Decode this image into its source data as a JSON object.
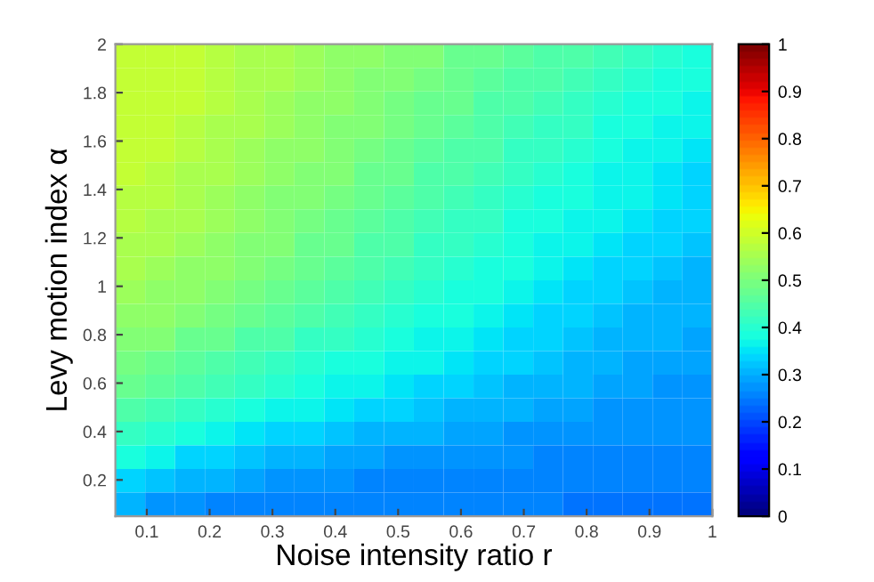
{
  "chart_data": {
    "type": "heatmap",
    "xlabel": "Noise intensity ratio r",
    "ylabel": "Levy motion index α",
    "xlim": [
      0.05,
      1
    ],
    "xticks": [
      0.1,
      0.2,
      0.3,
      0.4,
      0.5,
      0.6,
      0.7,
      0.8,
      0.9,
      1
    ],
    "ylim": [
      0.05,
      2
    ],
    "yticks": [
      0.2,
      0.4,
      0.6,
      0.8,
      1,
      1.2,
      1.4,
      1.6,
      1.8,
      2
    ],
    "clim": [
      0,
      1
    ],
    "cticks": [
      0,
      0.1,
      0.2,
      0.3,
      0.4,
      0.5,
      0.6,
      0.7,
      0.8,
      0.9,
      1
    ],
    "cells": [
      [
        0.59,
        0.59,
        0.58,
        0.57,
        0.56,
        0.55,
        0.54,
        0.53,
        0.52,
        0.51,
        0.5,
        0.48,
        0.47,
        0.46,
        0.45,
        0.44,
        0.43,
        0.42,
        0.4,
        0.39
      ],
      [
        0.59,
        0.59,
        0.58,
        0.57,
        0.56,
        0.55,
        0.54,
        0.53,
        0.51,
        0.5,
        0.49,
        0.48,
        0.46,
        0.45,
        0.44,
        0.43,
        0.42,
        0.4,
        0.39,
        0.38
      ],
      [
        0.59,
        0.58,
        0.58,
        0.57,
        0.56,
        0.54,
        0.53,
        0.52,
        0.51,
        0.49,
        0.48,
        0.47,
        0.45,
        0.44,
        0.43,
        0.42,
        0.4,
        0.39,
        0.38,
        0.37
      ],
      [
        0.59,
        0.58,
        0.57,
        0.56,
        0.55,
        0.54,
        0.53,
        0.51,
        0.5,
        0.49,
        0.47,
        0.46,
        0.45,
        0.43,
        0.42,
        0.41,
        0.39,
        0.38,
        0.37,
        0.36
      ],
      [
        0.58,
        0.58,
        0.57,
        0.56,
        0.54,
        0.53,
        0.52,
        0.5,
        0.49,
        0.48,
        0.46,
        0.45,
        0.44,
        0.42,
        0.41,
        0.4,
        0.38,
        0.37,
        0.36,
        0.35
      ],
      [
        0.58,
        0.57,
        0.56,
        0.55,
        0.54,
        0.52,
        0.51,
        0.5,
        0.48,
        0.47,
        0.45,
        0.44,
        0.43,
        0.41,
        0.4,
        0.39,
        0.37,
        0.36,
        0.35,
        0.34
      ],
      [
        0.57,
        0.57,
        0.56,
        0.54,
        0.53,
        0.51,
        0.5,
        0.49,
        0.47,
        0.46,
        0.44,
        0.43,
        0.42,
        0.4,
        0.39,
        0.38,
        0.37,
        0.36,
        0.35,
        0.34
      ],
      [
        0.57,
        0.56,
        0.55,
        0.54,
        0.52,
        0.51,
        0.49,
        0.48,
        0.46,
        0.45,
        0.43,
        0.42,
        0.41,
        0.39,
        0.38,
        0.37,
        0.36,
        0.35,
        0.34,
        0.33
      ],
      [
        0.56,
        0.55,
        0.54,
        0.53,
        0.51,
        0.5,
        0.48,
        0.47,
        0.45,
        0.44,
        0.42,
        0.41,
        0.4,
        0.38,
        0.37,
        0.36,
        0.35,
        0.34,
        0.33,
        0.32
      ],
      [
        0.55,
        0.54,
        0.53,
        0.52,
        0.5,
        0.49,
        0.47,
        0.46,
        0.44,
        0.43,
        0.41,
        0.4,
        0.39,
        0.38,
        0.36,
        0.35,
        0.34,
        0.33,
        0.32,
        0.31
      ],
      [
        0.54,
        0.53,
        0.52,
        0.5,
        0.49,
        0.47,
        0.46,
        0.44,
        0.43,
        0.42,
        0.4,
        0.39,
        0.38,
        0.37,
        0.35,
        0.34,
        0.33,
        0.32,
        0.31,
        0.31
      ],
      [
        0.53,
        0.52,
        0.5,
        0.49,
        0.47,
        0.46,
        0.44,
        0.43,
        0.42,
        0.4,
        0.39,
        0.38,
        0.37,
        0.35,
        0.34,
        0.33,
        0.32,
        0.31,
        0.31,
        0.3
      ],
      [
        0.51,
        0.5,
        0.48,
        0.47,
        0.45,
        0.44,
        0.42,
        0.41,
        0.4,
        0.39,
        0.37,
        0.36,
        0.35,
        0.34,
        0.33,
        0.32,
        0.31,
        0.3,
        0.3,
        0.29
      ],
      [
        0.49,
        0.48,
        0.46,
        0.45,
        0.43,
        0.42,
        0.4,
        0.39,
        0.38,
        0.37,
        0.36,
        0.35,
        0.34,
        0.33,
        0.32,
        0.31,
        0.3,
        0.29,
        0.29,
        0.29
      ],
      [
        0.47,
        0.46,
        0.44,
        0.43,
        0.41,
        0.4,
        0.38,
        0.37,
        0.36,
        0.35,
        0.34,
        0.33,
        0.32,
        0.31,
        0.31,
        0.3,
        0.29,
        0.29,
        0.28,
        0.28
      ],
      [
        0.45,
        0.43,
        0.41,
        0.4,
        0.38,
        0.37,
        0.36,
        0.35,
        0.34,
        0.33,
        0.32,
        0.31,
        0.31,
        0.3,
        0.29,
        0.29,
        0.28,
        0.28,
        0.28,
        0.28
      ],
      [
        0.42,
        0.4,
        0.38,
        0.37,
        0.35,
        0.34,
        0.33,
        0.32,
        0.31,
        0.31,
        0.3,
        0.29,
        0.29,
        0.28,
        0.28,
        0.27,
        0.27,
        0.27,
        0.27,
        0.27
      ],
      [
        0.38,
        0.36,
        0.34,
        0.33,
        0.32,
        0.31,
        0.3,
        0.29,
        0.29,
        0.28,
        0.28,
        0.27,
        0.27,
        0.27,
        0.26,
        0.26,
        0.26,
        0.26,
        0.26,
        0.26
      ],
      [
        0.34,
        0.32,
        0.31,
        0.3,
        0.29,
        0.28,
        0.27,
        0.27,
        0.26,
        0.26,
        0.26,
        0.26,
        0.25,
        0.25,
        0.25,
        0.25,
        0.25,
        0.25,
        0.25,
        0.25
      ],
      [
        0.3,
        0.28,
        0.27,
        0.26,
        0.26,
        0.25,
        0.25,
        0.25,
        0.25,
        0.25,
        0.25,
        0.25,
        0.25,
        0.25,
        0.25,
        0.24,
        0.24,
        0.24,
        0.24,
        0.24
      ]
    ]
  }
}
